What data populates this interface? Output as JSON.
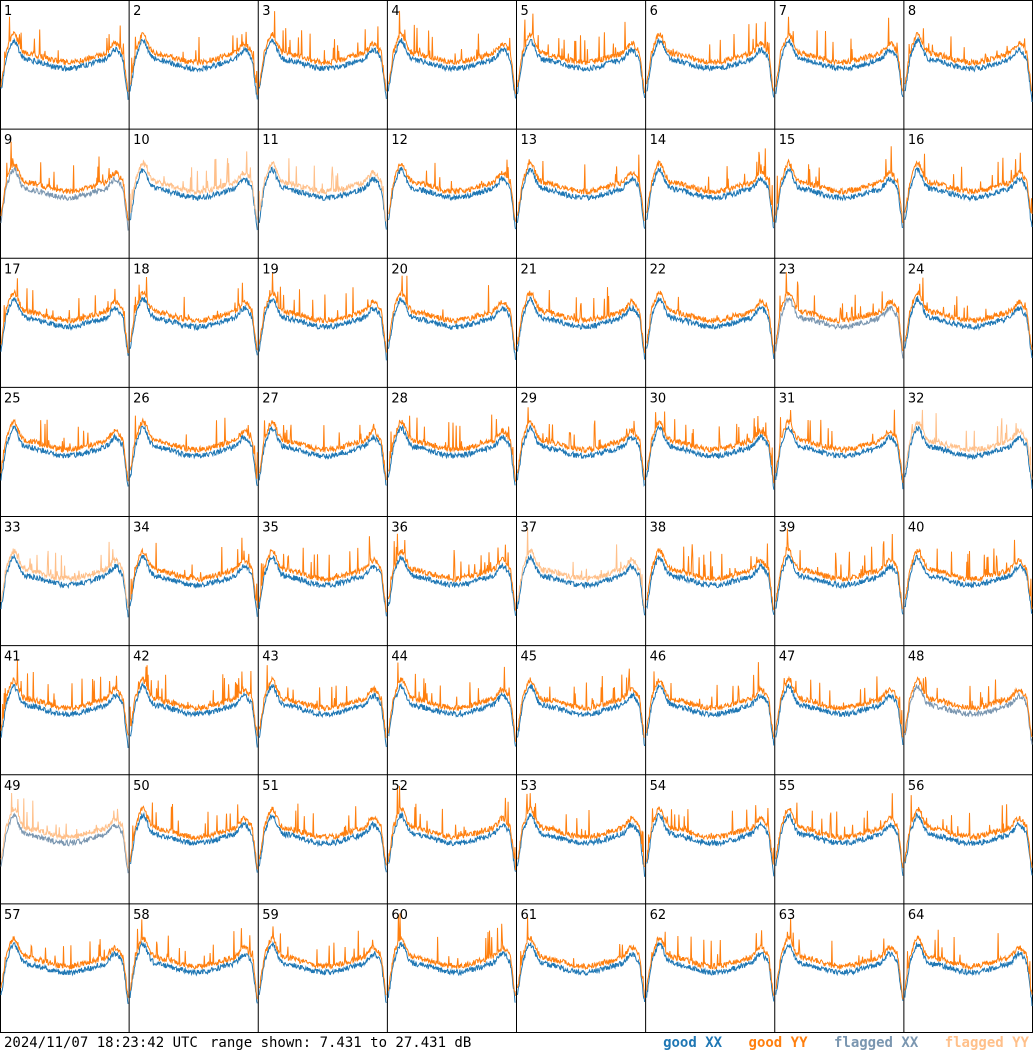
{
  "timestamp": "2024/11/07 18:23:42 UTC",
  "range_text": "range shown: 7.431 to 27.431 dB",
  "legend": {
    "good_xx": "good XX",
    "good_yy": "good YY",
    "flagged_xx": "flagged XX",
    "flagged_yy": "flagged YY"
  },
  "colors": {
    "good_xx": "#1f77b4",
    "good_yy": "#ff7f0e",
    "flagged_xx": "#7a96b0",
    "flagged_yy": "#ffc08a",
    "grid_lines": "#000000"
  },
  "chart_data": {
    "type": "line",
    "layout": "8x8 grid of spectrum panels",
    "y_unit": "dB",
    "ylim": [
      7.431,
      27.431
    ],
    "panel_labels": [
      "1",
      "2",
      "3",
      "4",
      "5",
      "6",
      "7",
      "8",
      "9",
      "10",
      "11",
      "12",
      "13",
      "14",
      "15",
      "16",
      "17",
      "18",
      "19",
      "20",
      "21",
      "22",
      "23",
      "24",
      "25",
      "26",
      "27",
      "28",
      "29",
      "30",
      "31",
      "32",
      "33",
      "34",
      "35",
      "36",
      "37",
      "38",
      "39",
      "40",
      "41",
      "42",
      "43",
      "44",
      "45",
      "46",
      "47",
      "48",
      "49",
      "50",
      "51",
      "52",
      "53",
      "54",
      "55",
      "56",
      "57",
      "58",
      "59",
      "60",
      "61",
      "62",
      "63",
      "64"
    ],
    "series": [
      {
        "name": "good XX"
      },
      {
        "name": "good YY"
      },
      {
        "name": "flagged XX"
      },
      {
        "name": "flagged YY"
      }
    ],
    "panel_status": {
      "9": {
        "xx": "flagged",
        "yy": "good"
      },
      "10": {
        "xx": "good",
        "yy": "flagged"
      },
      "11": {
        "xx": "good",
        "yy": "flagged"
      },
      "23": {
        "xx": "flagged",
        "yy": "good"
      },
      "32": {
        "xx": "good",
        "yy": "flagged"
      },
      "33": {
        "xx": "good",
        "yy": "flagged"
      },
      "37": {
        "xx": "good",
        "yy": "flagged"
      },
      "48": {
        "xx": "flagged",
        "yy": "good"
      },
      "49": {
        "xx": "flagged",
        "yy": "flagged"
      }
    }
  }
}
